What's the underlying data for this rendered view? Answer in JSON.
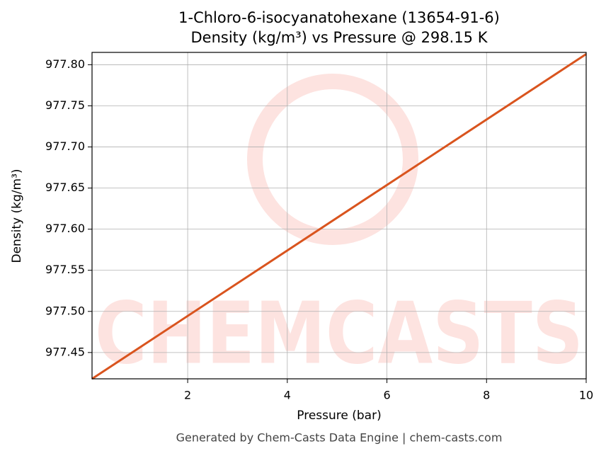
{
  "chart_data": {
    "type": "line",
    "title": "1-Chloro-6-isocyanatohexane (13654-91-6)",
    "subtitle": "Density (kg/m³) vs Pressure @ 298.15 K",
    "x_label": "Pressure (bar)",
    "y_label": "Density (kg/m³)",
    "footer": "Generated by Chem-Casts Data Engine | chem-casts.com",
    "watermark": "CHEMCASTS",
    "x": [
      0.08,
      10
    ],
    "series": [
      {
        "name": "Density",
        "color": "#d9541e",
        "values": [
          977.418,
          977.813
        ]
      }
    ],
    "xlim": [
      0.08,
      10
    ],
    "ylim": [
      977.418,
      977.815
    ],
    "xticks": [
      2,
      4,
      6,
      8,
      10
    ],
    "yticks": [
      {
        "value": 977.45,
        "label": "977.45"
      },
      {
        "value": 977.5,
        "label": "977.50"
      },
      {
        "value": 977.55,
        "label": "977.55"
      },
      {
        "value": 977.6,
        "label": "977.60"
      },
      {
        "value": 977.65,
        "label": "977.65"
      },
      {
        "value": 977.7,
        "label": "977.70"
      },
      {
        "value": 977.75,
        "label": "977.75"
      },
      {
        "value": 977.8,
        "label": "977.80"
      }
    ],
    "grid": true
  }
}
